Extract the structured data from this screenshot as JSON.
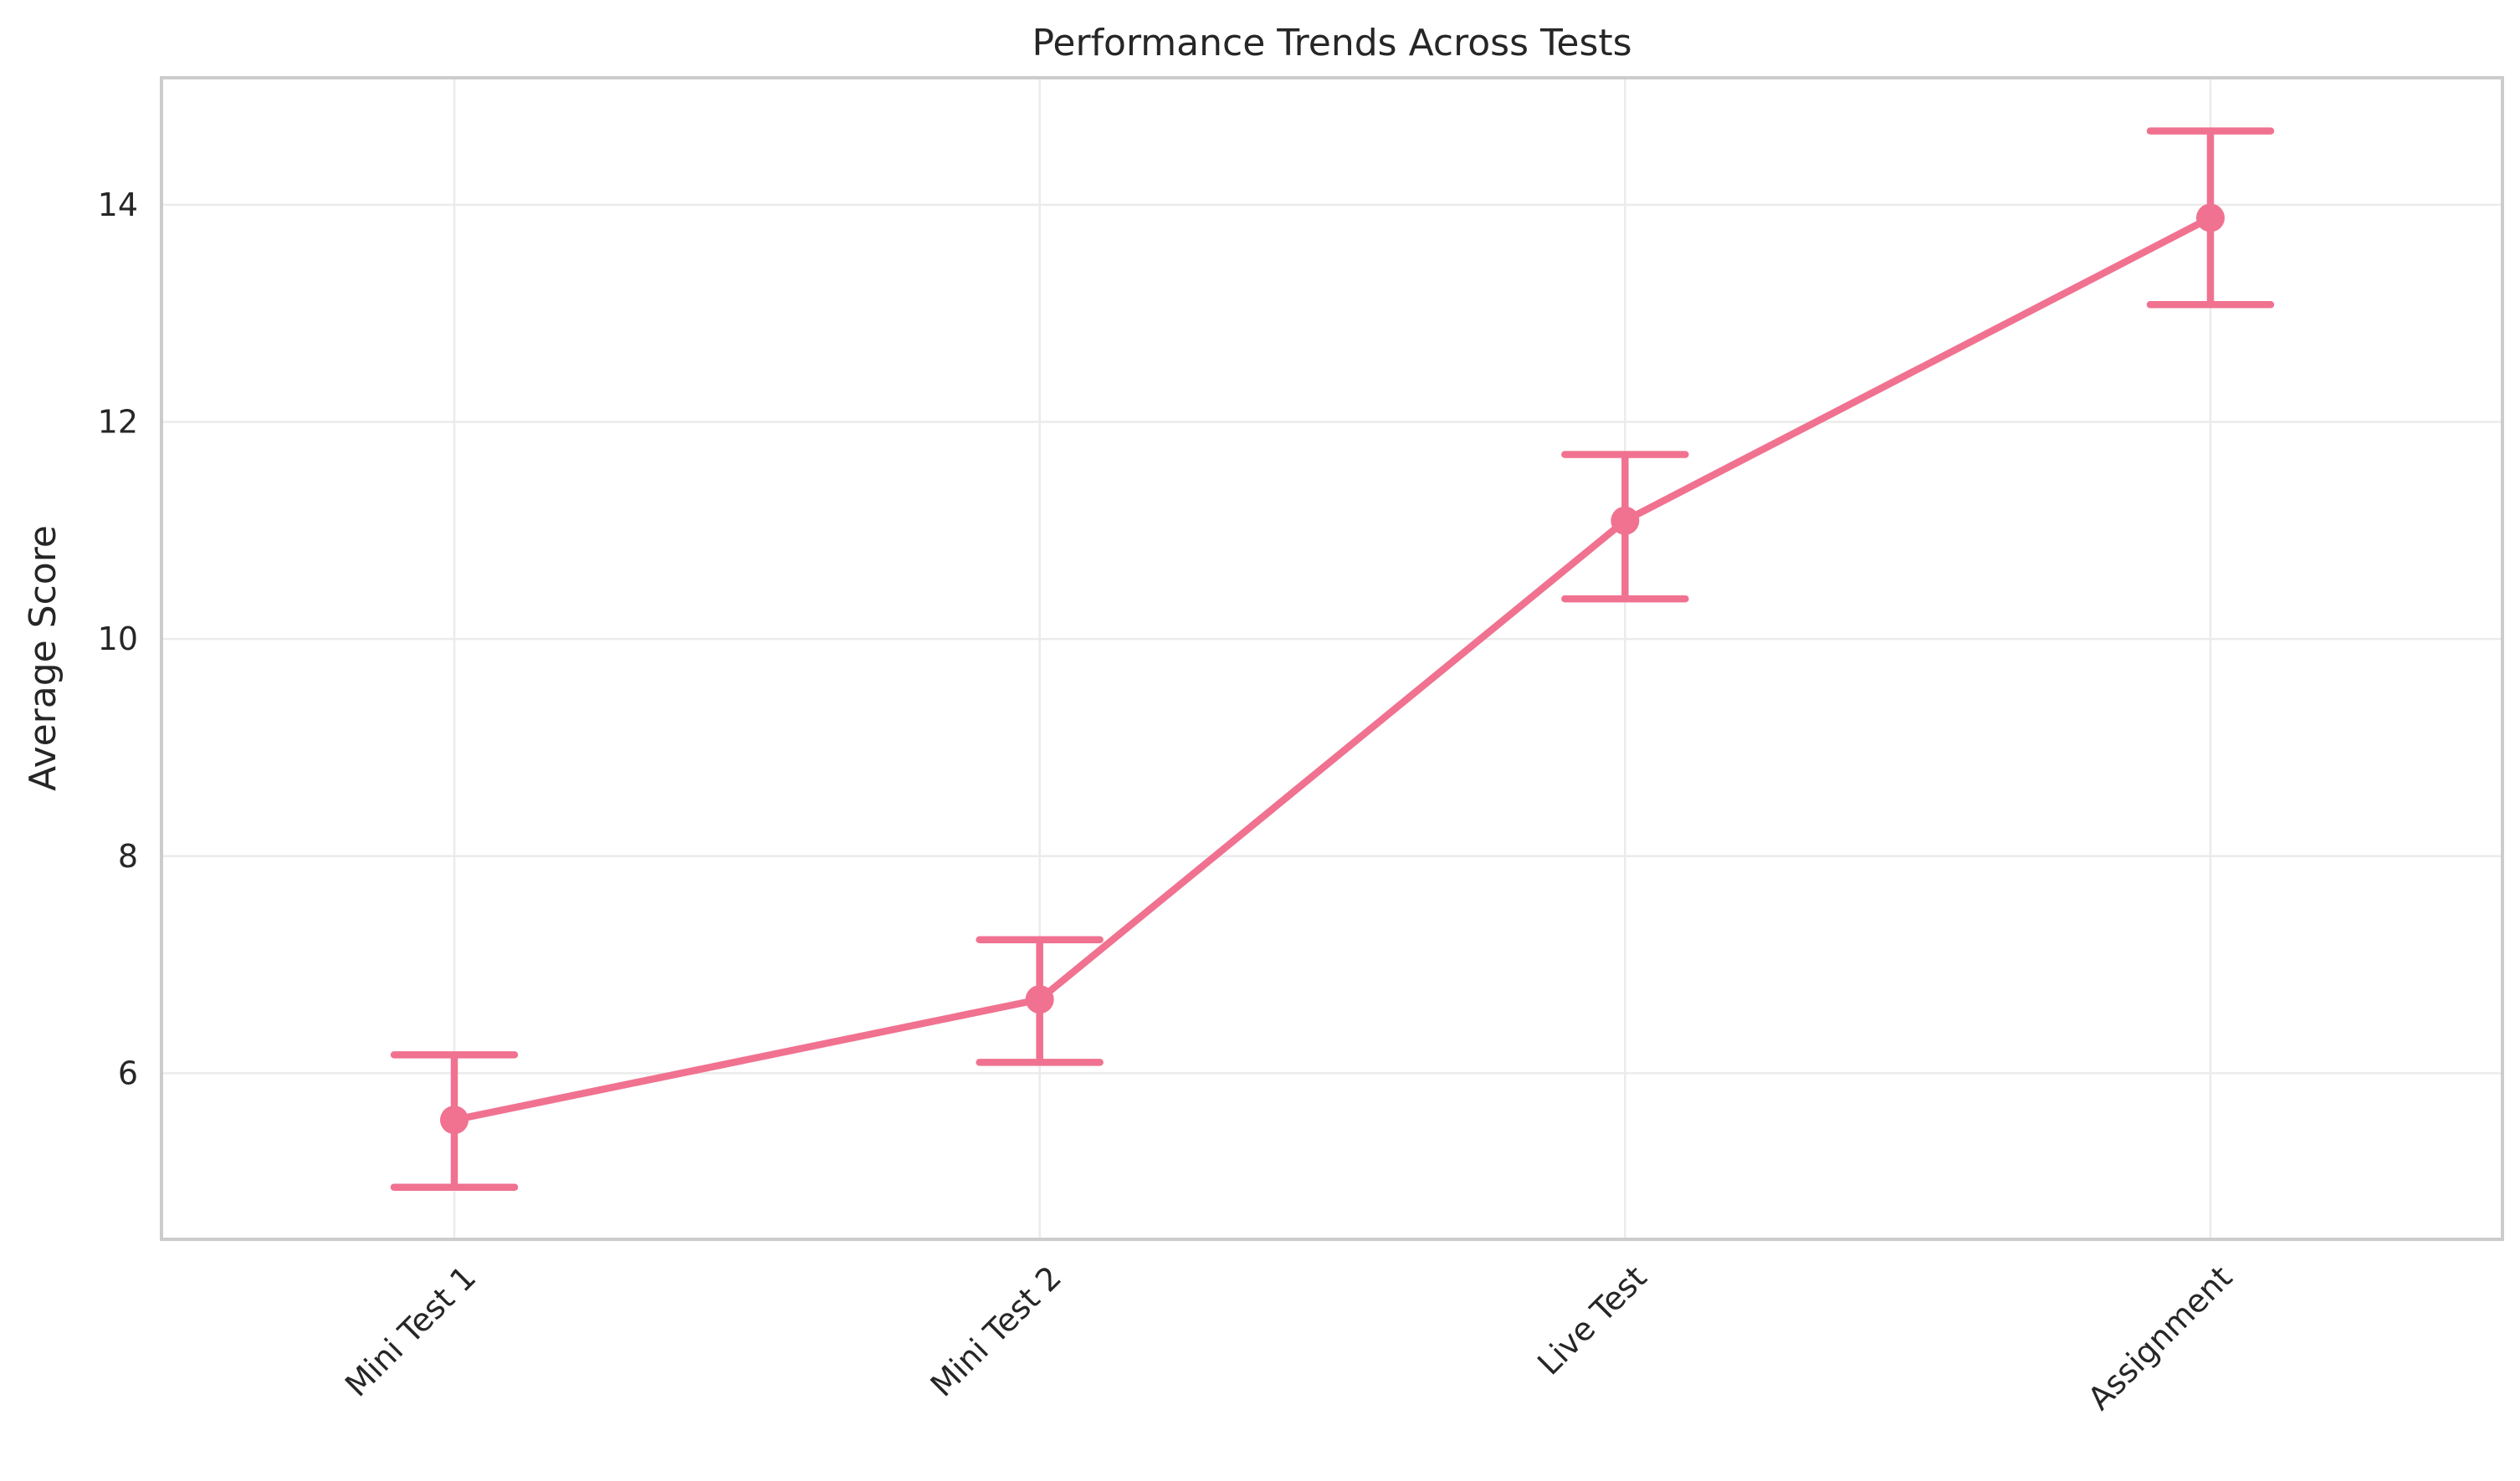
{
  "chart_data": {
    "type": "line",
    "title": "Performance Trends Across Tests",
    "xlabel": "",
    "ylabel": "Average Score",
    "categories": [
      "Mini Test 1",
      "Mini Test 2",
      "Live Test",
      "Assignment"
    ],
    "series": [
      {
        "values": [
          5.57,
          6.68,
          11.09,
          13.88
        ],
        "error_low": [
          4.95,
          6.1,
          10.37,
          13.08
        ],
        "error_high": [
          6.17,
          7.23,
          11.7,
          14.68
        ],
        "color": "#f07290"
      }
    ],
    "ylim": [
      4.47,
      15.17
    ],
    "yticks": [
      6,
      8,
      10,
      12,
      14
    ],
    "grid": true,
    "legend": "none"
  }
}
